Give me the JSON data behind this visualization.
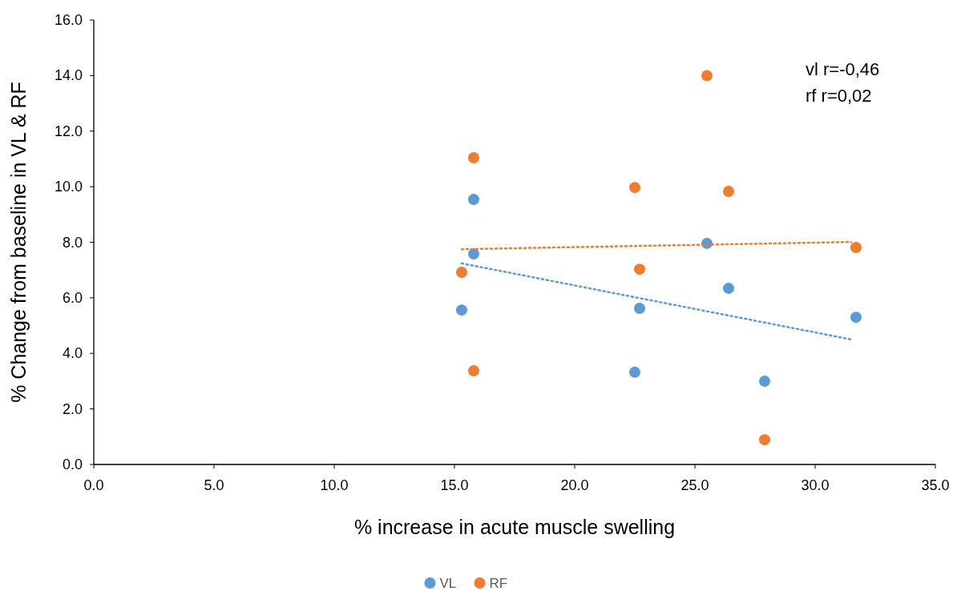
{
  "chart_data": {
    "type": "scatter",
    "xlabel": "% increase in acute muscle swelling",
    "ylabel": "% Change from baseline in VL & RF",
    "xlim": [
      0,
      35
    ],
    "xticks": [
      {
        "value": 0,
        "label": "0.0"
      },
      {
        "value": 5,
        "label": "5.0"
      },
      {
        "value": 10,
        "label": "10.0"
      },
      {
        "value": 15,
        "label": "15.0"
      },
      {
        "value": 20,
        "label": "20.0"
      },
      {
        "value": 25,
        "label": "25.0"
      },
      {
        "value": 30,
        "label": "30.0"
      },
      {
        "value": 35,
        "label": "35.0"
      }
    ],
    "ylim": [
      0,
      16
    ],
    "yticks": [
      {
        "value": 0,
        "label": "0.0"
      },
      {
        "value": 2,
        "label": "2.0"
      },
      {
        "value": 4,
        "label": "4.0"
      },
      {
        "value": 6,
        "label": "6.0"
      },
      {
        "value": 8,
        "label": "8.0"
      },
      {
        "value": 10,
        "label": "10.0"
      },
      {
        "value": 12,
        "label": "12.0"
      },
      {
        "value": 14,
        "label": "14.0"
      },
      {
        "value": 16,
        "label": "16.0"
      }
    ],
    "grid": false,
    "legend": "bottom",
    "marker": "circle",
    "series": [
      {
        "name": "VL",
        "color": "#5b9bd5",
        "x": [
          15.3,
          15.8,
          15.8,
          22.7,
          22.5,
          25.5,
          26.4,
          27.9,
          31.7
        ],
        "values": [
          5.56,
          9.54,
          7.58,
          5.62,
          3.32,
          7.96,
          6.34,
          3.0,
          5.3
        ]
      },
      {
        "name": "RF",
        "color": "#ed7d31",
        "x": [
          15.3,
          15.8,
          15.8,
          22.5,
          22.7,
          25.5,
          26.4,
          27.9,
          31.7
        ],
        "values": [
          6.92,
          11.04,
          3.37,
          9.97,
          7.03,
          14.0,
          9.83,
          0.89,
          7.81
        ]
      },
      {
        "type": "line",
        "color": "#5b9bd5",
        "line_style": "dotted",
        "marker": "none",
        "x": [
          15.3,
          31.5
        ],
        "values": [
          7.24,
          4.5
        ]
      },
      {
        "type": "line",
        "color": "#ed7d31",
        "line_style": "dotted",
        "marker": "none",
        "x": [
          15.3,
          31.5
        ],
        "values": [
          7.75,
          8.01
        ]
      }
    ],
    "annotations": [
      "vl r=-0,46",
      "rf r=0,02"
    ]
  }
}
